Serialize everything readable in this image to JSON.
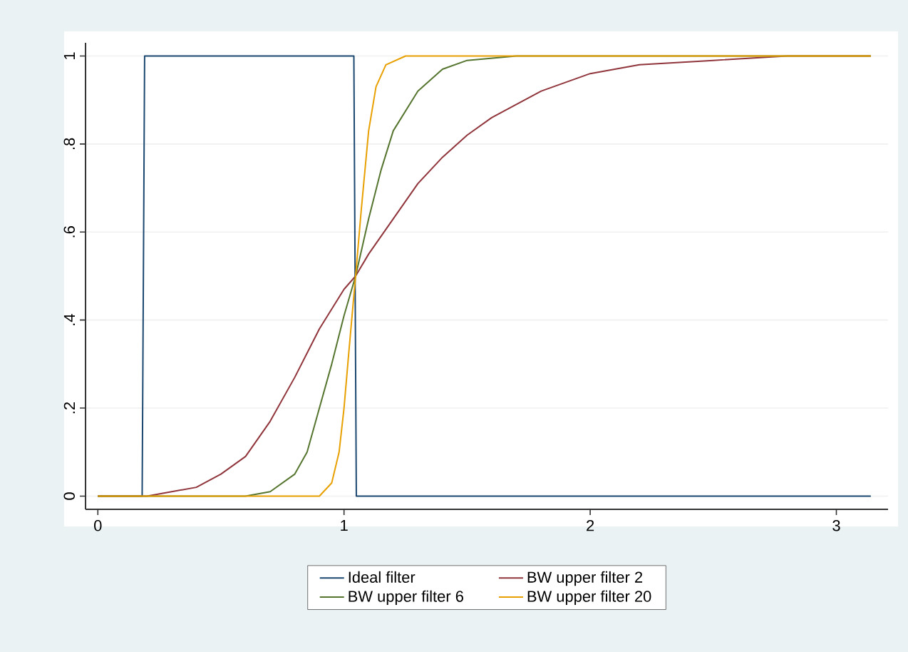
{
  "chart_data": {
    "type": "line",
    "xlim": [
      -0.05,
      3.21
    ],
    "ylim": [
      -0.03,
      1.03
    ],
    "xticks": [
      0,
      1,
      2,
      3
    ],
    "yticks": [
      {
        "value": 0,
        "label": "0"
      },
      {
        "value": 0.2,
        "label": ".2"
      },
      {
        "value": 0.4,
        "label": ".4"
      },
      {
        "value": 0.6,
        "label": ".6"
      },
      {
        "value": 0.8,
        "label": ".8"
      },
      {
        "value": 1,
        "label": "1"
      }
    ],
    "grid": "y",
    "legend": "bottom",
    "series": [
      {
        "name": "Ideal filter",
        "color": "#1a476f",
        "x": [
          0,
          0.18,
          0.19,
          1.04,
          1.05,
          3.14
        ],
        "values": [
          0,
          0,
          1,
          1,
          0,
          0
        ]
      },
      {
        "name": "BW upper filter 2",
        "color": "#90353b",
        "x": [
          0,
          0.2,
          0.3,
          0.4,
          0.5,
          0.6,
          0.7,
          0.8,
          0.9,
          1.0,
          1.047,
          1.1,
          1.2,
          1.3,
          1.4,
          1.5,
          1.6,
          1.8,
          2.0,
          2.2,
          2.5,
          2.8,
          3.14
        ],
        "values": [
          0,
          0,
          0.01,
          0.02,
          0.05,
          0.09,
          0.17,
          0.27,
          0.38,
          0.47,
          0.5,
          0.55,
          0.63,
          0.71,
          0.77,
          0.82,
          0.86,
          0.92,
          0.96,
          0.98,
          0.99,
          1,
          1
        ]
      },
      {
        "name": "BW upper filter 6",
        "color": "#55752f",
        "x": [
          0,
          0.6,
          0.7,
          0.8,
          0.85,
          0.9,
          0.95,
          1.0,
          1.047,
          1.1,
          1.15,
          1.2,
          1.3,
          1.4,
          1.5,
          1.7,
          3.14
        ],
        "values": [
          0,
          0,
          0.01,
          0.05,
          0.1,
          0.2,
          0.3,
          0.41,
          0.5,
          0.63,
          0.74,
          0.83,
          0.92,
          0.97,
          0.99,
          1,
          1
        ]
      },
      {
        "name": "BW upper filter 20",
        "color": "#e8a000",
        "x": [
          0,
          0.9,
          0.95,
          0.98,
          1.0,
          1.02,
          1.047,
          1.07,
          1.1,
          1.13,
          1.17,
          1.25,
          3.14
        ],
        "values": [
          0,
          0,
          0.03,
          0.1,
          0.2,
          0.33,
          0.5,
          0.65,
          0.83,
          0.93,
          0.98,
          1,
          1
        ]
      }
    ]
  }
}
